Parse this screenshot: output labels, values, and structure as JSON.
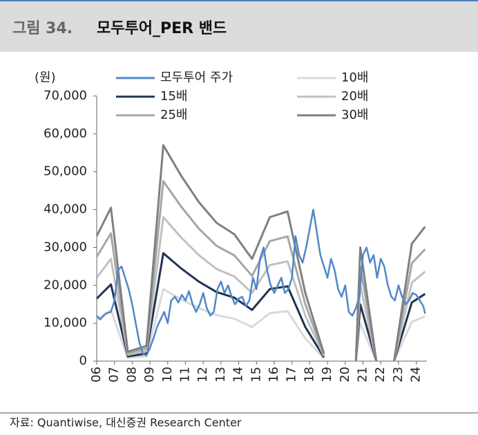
{
  "chart_data": {
    "type": "line",
    "title_label": "그림 34.",
    "title": "모두투어_PER 밴드",
    "ylabel": "(원)",
    "source": "자료: Quantiwise, 대신증권 Research Center",
    "xlim": [
      2006,
      2024.6
    ],
    "xticks": [
      {
        "value": 2006,
        "label": "06"
      },
      {
        "value": 2007,
        "label": "07"
      },
      {
        "value": 2008,
        "label": "08"
      },
      {
        "value": 2009,
        "label": "09"
      },
      {
        "value": 2010,
        "label": "10"
      },
      {
        "value": 2011,
        "label": "11"
      },
      {
        "value": 2012,
        "label": "12"
      },
      {
        "value": 2013,
        "label": "13"
      },
      {
        "value": 2014,
        "label": "14"
      },
      {
        "value": 2015,
        "label": "15"
      },
      {
        "value": 2016,
        "label": "16"
      },
      {
        "value": 2017,
        "label": "17"
      },
      {
        "value": 2018,
        "label": "18"
      },
      {
        "value": 2019,
        "label": "19"
      },
      {
        "value": 2020,
        "label": "20"
      },
      {
        "value": 2021,
        "label": "21"
      },
      {
        "value": 2022,
        "label": "22"
      },
      {
        "value": 2023,
        "label": "23"
      },
      {
        "value": 2024,
        "label": "24"
      }
    ],
    "ylim": [
      0,
      70000
    ],
    "yticks": [
      0,
      {
        "value": 10000,
        "label": "10,000"
      },
      {
        "value": 20000,
        "label": "20,000"
      },
      {
        "value": 30000,
        "label": "30,000"
      },
      {
        "value": 40000,
        "label": "40,000"
      },
      {
        "value": 50000,
        "label": "50,000"
      },
      {
        "value": 60000,
        "label": "60,000"
      },
      {
        "value": 70000,
        "label": "70,000"
      }
    ],
    "x": [
      2006,
      2006.8,
      2007.75,
      2008.8,
      2009.75,
      2010.75,
      2011.75,
      2012.75,
      2013.75,
      2014.75,
      2015.75,
      2016.75,
      2017.75,
      2018.8,
      2019.7,
      2020.6,
      2020.85,
      2021.75,
      2022.2,
      2022.75,
      2023.75,
      2024.5
    ],
    "series": [
      {
        "name": "모두투어 주가",
        "color": "#4f87c9",
        "x": [
          2006,
          2006.2,
          2006.5,
          2006.8,
          2007,
          2007.2,
          2007.4,
          2007.6,
          2007.8,
          2008,
          2008.2,
          2008.4,
          2008.6,
          2008.8,
          2009,
          2009.2,
          2009.4,
          2009.6,
          2009.8,
          2010,
          2010.2,
          2010.4,
          2010.6,
          2010.8,
          2011,
          2011.2,
          2011.4,
          2011.6,
          2011.8,
          2012,
          2012.2,
          2012.4,
          2012.6,
          2012.8,
          2013,
          2013.2,
          2013.4,
          2013.6,
          2013.8,
          2014,
          2014.2,
          2014.4,
          2014.6,
          2014.8,
          2015,
          2015.2,
          2015.4,
          2015.6,
          2015.8,
          2016,
          2016.2,
          2016.4,
          2016.6,
          2016.8,
          2017,
          2017.2,
          2017.4,
          2017.6,
          2017.8,
          2018,
          2018.2,
          2018.4,
          2018.6,
          2018.8,
          2019,
          2019.2,
          2019.4,
          2019.6,
          2019.8,
          2020,
          2020.2,
          2020.4,
          2020.6,
          2020.8,
          2021,
          2021.2,
          2021.4,
          2021.6,
          2021.8,
          2022,
          2022.2,
          2022.4,
          2022.6,
          2022.8,
          2023,
          2023.2,
          2023.4,
          2023.6,
          2023.8,
          2024,
          2024.2,
          2024.4,
          2024.5
        ],
        "values": [
          12000,
          11000,
          12500,
          13000,
          16000,
          24000,
          25000,
          22000,
          19000,
          15000,
          10000,
          5000,
          2000,
          1500,
          3500,
          6000,
          9000,
          11000,
          13000,
          10000,
          16000,
          17000,
          15500,
          17500,
          16000,
          18500,
          15000,
          13000,
          15000,
          18000,
          14000,
          12000,
          13000,
          19000,
          21000,
          18000,
          20000,
          17000,
          15000,
          16500,
          17000,
          14500,
          16000,
          22000,
          19000,
          27000,
          30000,
          24000,
          20000,
          18000,
          20000,
          22000,
          18000,
          19000,
          22000,
          33000,
          28000,
          26000,
          30000,
          35000,
          40000,
          34000,
          28000,
          25000,
          22000,
          27000,
          24000,
          19000,
          17000,
          20000,
          13000,
          12000,
          14000,
          17000,
          28000,
          30000,
          26000,
          28000,
          22000,
          27000,
          25000,
          20000,
          17000,
          16000,
          20000,
          17000,
          15000,
          16000,
          18000,
          17500,
          16000,
          14500,
          12500
        ]
      },
      {
        "name": "10배",
        "color": "#d9d9d9",
        "values": [
          11000,
          13500,
          830,
          1330,
          19000,
          16330,
          14000,
          12170,
          11170,
          9000,
          12670,
          13170,
          6000,
          670,
          null,
          0,
          10000,
          0,
          null,
          0,
          10330,
          11830
        ]
      },
      {
        "name": "15배",
        "color": "#1f3352",
        "values": [
          16500,
          20250,
          1245,
          1995,
          28500,
          24495,
          21000,
          18255,
          16755,
          13500,
          19005,
          19755,
          9000,
          1005,
          null,
          0,
          15000,
          0,
          null,
          0,
          15495,
          17745
        ]
      },
      {
        "name": "20배",
        "color": "#c0c0c0",
        "values": [
          22000,
          27000,
          1660,
          2660,
          38000,
          32660,
          28000,
          24340,
          22340,
          18000,
          25340,
          26340,
          12000,
          1340,
          null,
          0,
          20000,
          0,
          null,
          0,
          20660,
          23660
        ]
      },
      {
        "name": "25배",
        "color": "#a6a6a6",
        "values": [
          27500,
          33750,
          2075,
          3325,
          47500,
          40825,
          35000,
          30425,
          27925,
          22500,
          31675,
          32925,
          15000,
          1675,
          null,
          0,
          25000,
          0,
          null,
          0,
          25825,
          29575
        ]
      },
      {
        "name": "30배",
        "color": "#7f7f7f",
        "values": [
          33000,
          40500,
          2490,
          3990,
          57000,
          48990,
          42000,
          36510,
          33510,
          27000,
          38010,
          39510,
          18000,
          2010,
          null,
          0,
          30000,
          0,
          null,
          0,
          30990,
          35490
        ]
      }
    ]
  }
}
